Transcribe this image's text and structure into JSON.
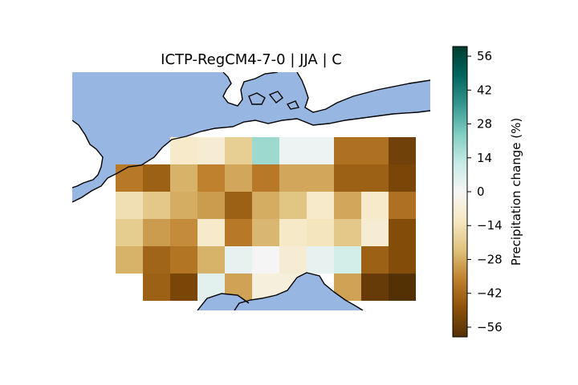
{
  "chart_data": {
    "type": "heatmap",
    "title": "ICTP-RegCM4-7-0 | JJA | C",
    "colorbar": {
      "label": "Precipitation change (%)",
      "range": [
        -60,
        60
      ],
      "ticks": [
        -56,
        -42,
        -28,
        -14,
        0,
        14,
        28,
        42,
        56
      ],
      "colormap": "BrBG"
    },
    "colors": {
      "sea": "#98b6e2",
      "land_background": "#ffffff",
      "coastline": "#000000"
    },
    "grid_rows": 6,
    "grid_cols": 12,
    "values": [
      [
        null,
        null,
        null,
        -10,
        -8,
        -20,
        19,
        2,
        2,
        -40,
        -40,
        -54
      ],
      [
        null,
        -38,
        -44,
        -27,
        -36,
        -29,
        -38,
        -29,
        -29,
        -44,
        -44,
        -52
      ],
      [
        null,
        -15,
        -22,
        -28,
        -31,
        -44,
        -28,
        -23,
        -10,
        -29,
        -10,
        -40
      ],
      [
        null,
        -21,
        -31,
        -34,
        -10,
        -38,
        -26,
        -11,
        -13,
        -22,
        -8,
        -50
      ],
      [
        null,
        -27,
        -43,
        -39,
        -27,
        4,
        0,
        -8,
        4,
        9,
        -44,
        -50
      ],
      [
        null,
        null,
        -44,
        -52,
        5,
        -30,
        -6,
        -6,
        null,
        -30,
        -56,
        -62
      ]
    ]
  }
}
